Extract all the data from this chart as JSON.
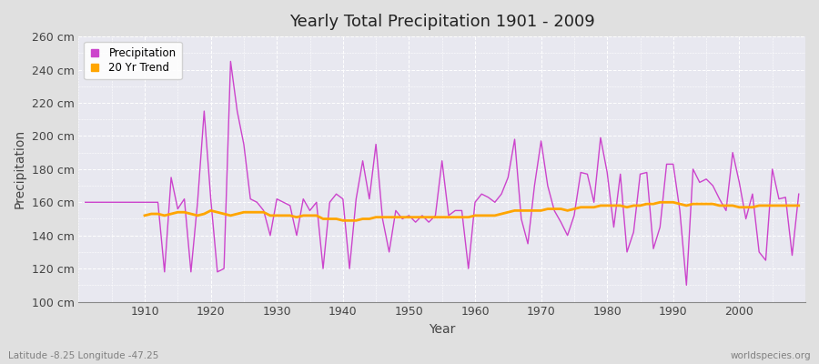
{
  "title": "Yearly Total Precipitation 1901 - 2009",
  "xlabel": "Year",
  "ylabel": "Precipitation",
  "subtitle_left": "Latitude -8.25 Longitude -47.25",
  "subtitle_right": "worldspecies.org",
  "precip_color": "#CC44CC",
  "trend_color": "#FFA500",
  "fig_bg_color": "#E0E0E0",
  "plot_bg_color": "#E8E8F0",
  "ylim": [
    100,
    260
  ],
  "ytick_step": 20,
  "years": [
    1901,
    1902,
    1903,
    1904,
    1905,
    1906,
    1907,
    1908,
    1909,
    1910,
    1911,
    1912,
    1913,
    1914,
    1915,
    1916,
    1917,
    1918,
    1919,
    1920,
    1921,
    1922,
    1923,
    1924,
    1925,
    1926,
    1927,
    1928,
    1929,
    1930,
    1931,
    1932,
    1933,
    1934,
    1935,
    1936,
    1937,
    1938,
    1939,
    1940,
    1941,
    1942,
    1943,
    1944,
    1945,
    1946,
    1947,
    1948,
    1949,
    1950,
    1951,
    1952,
    1953,
    1954,
    1955,
    1956,
    1957,
    1958,
    1959,
    1960,
    1961,
    1962,
    1963,
    1964,
    1965,
    1966,
    1967,
    1968,
    1969,
    1970,
    1971,
    1972,
    1973,
    1974,
    1975,
    1976,
    1977,
    1978,
    1979,
    1980,
    1981,
    1982,
    1983,
    1984,
    1985,
    1986,
    1987,
    1988,
    1989,
    1990,
    1991,
    1992,
    1993,
    1994,
    1995,
    1996,
    1997,
    1998,
    1999,
    2000,
    2001,
    2002,
    2003,
    2004,
    2005,
    2006,
    2007,
    2008,
    2009
  ],
  "precip": [
    160,
    160,
    160,
    160,
    160,
    160,
    160,
    160,
    160,
    160,
    160,
    160,
    118,
    175,
    156,
    162,
    118,
    160,
    215,
    162,
    118,
    120,
    245,
    215,
    195,
    162,
    160,
    155,
    140,
    162,
    160,
    158,
    140,
    162,
    155,
    160,
    120,
    160,
    165,
    162,
    120,
    162,
    185,
    162,
    195,
    150,
    130,
    155,
    150,
    152,
    148,
    152,
    148,
    152,
    185,
    152,
    155,
    155,
    120,
    160,
    165,
    163,
    160,
    165,
    175,
    198,
    150,
    135,
    170,
    197,
    170,
    155,
    148,
    140,
    152,
    178,
    177,
    160,
    199,
    178,
    145,
    177,
    130,
    142,
    177,
    178,
    132,
    145,
    183,
    183,
    155,
    110,
    180,
    172,
    174,
    170,
    162,
    155,
    190,
    172,
    150,
    165,
    130,
    125,
    180,
    162,
    163,
    128,
    165
  ],
  "trend": [
    null,
    null,
    null,
    null,
    null,
    null,
    null,
    null,
    null,
    152,
    153,
    153,
    152,
    153,
    154,
    154,
    153,
    152,
    153,
    155,
    154,
    153,
    152,
    153,
    154,
    154,
    154,
    154,
    152,
    152,
    152,
    152,
    151,
    152,
    152,
    152,
    150,
    150,
    150,
    149,
    149,
    149,
    150,
    150,
    151,
    151,
    151,
    151,
    151,
    151,
    151,
    151,
    151,
    151,
    151,
    151,
    151,
    151,
    151,
    152,
    152,
    152,
    152,
    153,
    154,
    155,
    155,
    155,
    155,
    155,
    156,
    156,
    156,
    155,
    156,
    157,
    157,
    157,
    158,
    158,
    158,
    158,
    157,
    158,
    158,
    159,
    159,
    160,
    160,
    160,
    159,
    158,
    159,
    159,
    159,
    159,
    158,
    158,
    158,
    157,
    157,
    157,
    158,
    158,
    158,
    158,
    158,
    158,
    158
  ]
}
